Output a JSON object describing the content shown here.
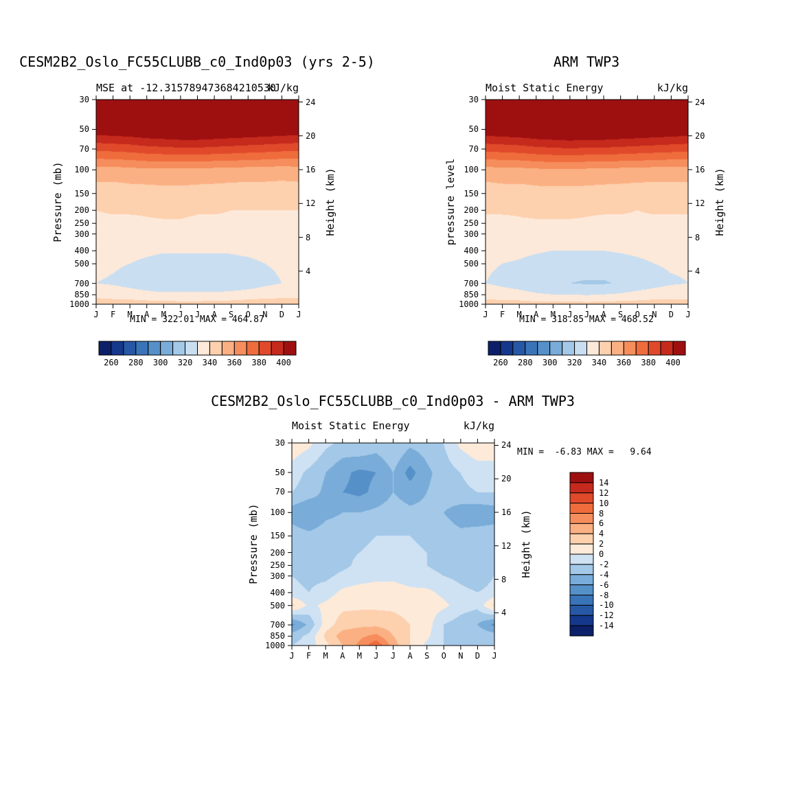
{
  "figure": {
    "background": "#ffffff",
    "frame_color": "#000000"
  },
  "chart_data": [
    {
      "id": "model",
      "type": "heatmap",
      "title": "CESM2B2_Oslo_FC55CLUBB_c0_Ind0p03 (yrs 2-5)",
      "left_string": "MSE at -12.315789473684210530",
      "units_label": "kJ/kg",
      "ylabel": "Pressure (mb)",
      "ylabel_right": "Height (km)",
      "minmax_label": "MIN = 322.01 MAX = 464.87",
      "min": 322.01,
      "max": 464.87,
      "x_ticks": [
        "J",
        "F",
        "M",
        "A",
        "M",
        "J",
        "J",
        "A",
        "S",
        "O",
        "N",
        "D",
        "J"
      ],
      "y_ticks": [
        30,
        50,
        70,
        100,
        150,
        200,
        250,
        300,
        400,
        500,
        700,
        850,
        1000
      ],
      "y_scale": "log-pressure",
      "height_ticks": [
        24,
        20,
        16,
        12,
        8,
        4
      ],
      "levels": [
        260,
        270,
        280,
        290,
        300,
        310,
        320,
        330,
        340,
        350,
        360,
        370,
        380,
        390,
        400
      ],
      "colorbar_labels": [
        260,
        280,
        300,
        320,
        340,
        360,
        380,
        400
      ],
      "palette": [
        "#0b2068",
        "#15388c",
        "#2758a5",
        "#3a74b8",
        "#5590c9",
        "#79acd8",
        "#a3c8e8",
        "#c9def1",
        "#fde9d9",
        "#fdd0ae",
        "#fbb083",
        "#f68d5c",
        "#ef6c3d",
        "#e04a2a",
        "#c62a1d",
        "#9e1010"
      ],
      "values": [
        [
          461,
          461,
          462,
          462,
          463,
          463,
          463,
          463,
          462,
          462,
          461,
          461,
          461
        ],
        [
          407,
          408,
          409,
          411,
          412,
          413,
          413,
          412,
          411,
          410,
          409,
          408,
          407
        ],
        [
          382,
          383,
          384,
          386,
          387,
          388,
          388,
          387,
          386,
          385,
          384,
          383,
          382
        ],
        [
          356,
          356,
          357,
          358,
          358,
          358,
          358,
          357,
          357,
          356,
          356,
          355,
          356
        ],
        [
          344,
          344,
          345,
          345,
          346,
          346,
          345,
          345,
          344,
          344,
          344,
          344,
          344
        ],
        [
          340,
          341,
          341,
          341,
          342,
          342,
          341,
          341,
          340,
          340,
          340,
          340,
          340
        ],
        [
          338,
          338,
          338,
          339,
          339,
          339,
          338,
          338,
          338,
          338,
          338,
          338,
          338
        ],
        [
          336,
          336,
          336,
          337,
          337,
          337,
          336,
          336,
          336,
          336,
          336,
          336,
          336
        ],
        [
          334,
          333,
          333,
          332,
          331,
          331,
          331,
          331,
          331,
          332,
          333,
          334,
          334
        ],
        [
          332,
          331,
          330,
          328,
          326,
          326,
          326,
          326,
          327,
          328,
          330,
          331,
          332
        ],
        [
          330,
          329,
          327,
          324,
          322,
          322,
          322,
          322,
          323,
          325,
          328,
          330,
          330
        ],
        [
          336,
          335,
          334,
          333,
          332,
          332,
          332,
          332,
          333,
          334,
          335,
          336,
          336
        ],
        [
          346,
          345,
          345,
          344,
          344,
          343,
          343,
          344,
          344,
          345,
          346,
          346,
          346
        ]
      ]
    },
    {
      "id": "obs",
      "type": "heatmap",
      "title": "ARM TWP3",
      "left_string": "Moist Static Energy",
      "units_label": "kJ/kg",
      "ylabel": "pressure level",
      "ylabel_right": "Height (km)",
      "minmax_label": "MIN = 318.85 MAX = 468.52",
      "min": 318.85,
      "max": 468.52,
      "x_ticks": [
        "J",
        "F",
        "M",
        "A",
        "M",
        "J",
        "J",
        "A",
        "S",
        "O",
        "N",
        "D",
        "J"
      ],
      "y_ticks": [
        30,
        50,
        70,
        100,
        150,
        200,
        250,
        300,
        400,
        500,
        700,
        850,
        1000
      ],
      "y_scale": "log-pressure",
      "height_ticks": [
        24,
        20,
        16,
        12,
        8,
        4
      ],
      "levels": [
        260,
        270,
        280,
        290,
        300,
        310,
        320,
        330,
        340,
        350,
        360,
        370,
        380,
        390,
        400
      ],
      "colorbar_labels": [
        260,
        280,
        300,
        320,
        340,
        360,
        380,
        400
      ],
      "palette": [
        "#0b2068",
        "#15388c",
        "#2758a5",
        "#3a74b8",
        "#5590c9",
        "#79acd8",
        "#a3c8e8",
        "#c9def1",
        "#fde9d9",
        "#fdd0ae",
        "#fbb083",
        "#f68d5c",
        "#ef6c3d",
        "#e04a2a",
        "#c62a1d",
        "#9e1010"
      ],
      "values": [
        [
          463,
          463,
          464,
          464,
          465,
          465,
          465,
          464,
          464,
          463,
          463,
          462,
          463
        ],
        [
          408,
          409,
          410,
          412,
          413,
          414,
          413,
          413,
          412,
          411,
          410,
          409,
          408
        ],
        [
          383,
          384,
          385,
          387,
          388,
          389,
          388,
          388,
          387,
          386,
          385,
          384,
          383
        ],
        [
          356,
          357,
          357,
          358,
          359,
          359,
          358,
          358,
          357,
          357,
          356,
          356,
          356
        ],
        [
          344,
          345,
          345,
          346,
          346,
          346,
          346,
          345,
          345,
          344,
          344,
          344,
          344
        ],
        [
          341,
          341,
          341,
          342,
          342,
          342,
          341,
          341,
          341,
          340,
          341,
          341,
          341
        ],
        [
          338,
          338,
          339,
          339,
          339,
          339,
          339,
          338,
          338,
          338,
          338,
          338,
          338
        ],
        [
          336,
          336,
          336,
          337,
          337,
          337,
          336,
          336,
          336,
          336,
          336,
          336,
          336
        ],
        [
          333,
          333,
          332,
          331,
          330,
          330,
          330,
          330,
          331,
          332,
          333,
          333,
          333
        ],
        [
          331,
          330,
          329,
          327,
          326,
          325,
          325,
          325,
          326,
          328,
          330,
          331,
          331
        ],
        [
          330,
          328,
          326,
          323,
          321,
          320,
          319,
          319,
          321,
          324,
          327,
          329,
          330
        ],
        [
          335,
          334,
          333,
          331,
          330,
          330,
          329,
          330,
          331,
          333,
          334,
          335,
          335
        ],
        [
          345,
          344,
          344,
          343,
          343,
          343,
          343,
          343,
          344,
          344,
          345,
          345,
          345
        ]
      ]
    },
    {
      "id": "diff",
      "type": "heatmap",
      "title": "CESM2B2_Oslo_FC55CLUBB_c0_Ind0p03 - ARM TWP3",
      "left_string": "Moist Static Energy",
      "units_label": "kJ/kg",
      "ylabel": "Pressure (mb)",
      "ylabel_right": "Height (km)",
      "minmax_label": "MIN =  -6.83 MAX =   9.64",
      "min": -6.83,
      "max": 9.64,
      "x_ticks": [
        "J",
        "F",
        "M",
        "A",
        "M",
        "J",
        "J",
        "A",
        "S",
        "O",
        "N",
        "D",
        "J"
      ],
      "y_ticks": [
        30,
        50,
        70,
        100,
        150,
        200,
        250,
        300,
        400,
        500,
        700,
        850,
        1000
      ],
      "y_scale": "log-pressure",
      "height_ticks": [
        24,
        20,
        16,
        12,
        8,
        4
      ],
      "levels": [
        -14,
        -12,
        -10,
        -8,
        -6,
        -4,
        -2,
        0,
        2,
        4,
        6,
        8,
        10,
        12,
        14
      ],
      "colorbar_labels": [
        14,
        12,
        10,
        8,
        6,
        4,
        2,
        0,
        -2,
        -4,
        -6,
        -8,
        -10,
        -12,
        -14
      ],
      "palette": [
        "#0b2068",
        "#15388c",
        "#2758a5",
        "#3a74b8",
        "#5590c9",
        "#79acd8",
        "#a3c8e8",
        "#cfe2f3",
        "#fdead9",
        "#fdd0ae",
        "#fbb083",
        "#f68d5c",
        "#ef6c3d",
        "#e04a2a",
        "#c62a1d",
        "#9e1010"
      ],
      "values": [
        [
          1.5,
          0.5,
          -1.5,
          -2.5,
          -2,
          -3,
          -2,
          -3.5,
          -3,
          -2,
          0.5,
          1.5,
          1.5
        ],
        [
          -1,
          -2.5,
          -4,
          -5.5,
          -6.5,
          -6,
          -4,
          -6.8,
          -4.5,
          -3,
          -2,
          -1,
          -1
        ],
        [
          -2,
          -3,
          -4.5,
          -6,
          -6.5,
          -5.5,
          -4,
          -5,
          -4,
          -3,
          -2.5,
          -2,
          -2
        ],
        [
          -5,
          -6,
          -4.5,
          -4,
          -4,
          -3.5,
          -3,
          -3.5,
          -3.5,
          -4,
          -5,
          -5.5,
          -5
        ],
        [
          -3,
          -3.5,
          -3,
          -3,
          -2.5,
          -2,
          -2,
          -2,
          -2.5,
          -3,
          -3.5,
          -3,
          -3
        ],
        [
          -2.5,
          -3,
          -3,
          -2.5,
          -2,
          -1.5,
          -1.5,
          -1.5,
          -2,
          -2.5,
          -3,
          -2.5,
          -2.5
        ],
        [
          -2.5,
          -3,
          -3,
          -2.5,
          -1.5,
          -1,
          -1,
          -1.5,
          -2,
          -2.5,
          -3,
          -3,
          -2.5
        ],
        [
          -2,
          -2.5,
          -2.5,
          -1.5,
          -1,
          -0.5,
          -0.5,
          -1,
          -1.5,
          -2,
          -2.5,
          -3,
          -2
        ],
        [
          -1.5,
          -2,
          -1,
          0.5,
          1,
          1,
          1,
          0.5,
          0.5,
          -0.5,
          -1.5,
          -2,
          -1.5
        ],
        [
          2.5,
          -0.5,
          0.5,
          1.5,
          1.5,
          1.5,
          1.5,
          1,
          1,
          0.5,
          -1,
          -1.5,
          2.5
        ],
        [
          -6.5,
          -3.5,
          1,
          3,
          3.5,
          3.5,
          3,
          2,
          1,
          -2,
          -3,
          -4,
          -6.5
        ],
        [
          -3,
          -1.5,
          2.5,
          5,
          5.5,
          6.5,
          4,
          2,
          0.5,
          -2,
          -3,
          -2.5,
          -3
        ],
        [
          -2,
          -1,
          1.5,
          4,
          6.5,
          9.6,
          5,
          2,
          -0.5,
          -2,
          -2.5,
          -2,
          -2
        ]
      ]
    }
  ]
}
